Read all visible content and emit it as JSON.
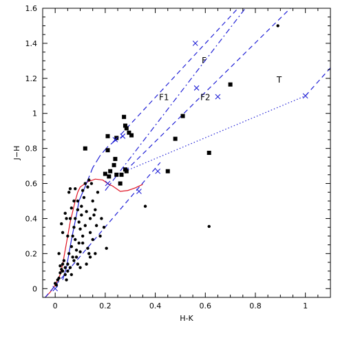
{
  "chart_data": {
    "type": "scatter",
    "title": "",
    "xlabel": "H-K",
    "ylabel": "J−H",
    "xlim": [
      -0.05,
      1.1
    ],
    "ylim": [
      -0.05,
      1.6
    ],
    "x_ticks": [
      0,
      0.2,
      0.4,
      0.6,
      0.8,
      1
    ],
    "x_tick_labels": [
      "0",
      "0.2",
      "0.4",
      "0.6",
      "0.8",
      "1"
    ],
    "y_ticks": [
      0,
      0.2,
      0.4,
      0.6,
      0.8,
      1,
      1.2,
      1.4,
      1.6
    ],
    "y_tick_labels": [
      "0",
      "0.2",
      "0.4",
      "0.6",
      "0.8",
      "1",
      "1.2",
      "1.4",
      "1.6"
    ],
    "grid": false,
    "colors": {
      "reddening": "#1f1fd6",
      "main_sequence": "#e01020",
      "points": "#000000"
    },
    "region_labels": [
      {
        "text": "F",
        "x": 0.595,
        "y": 1.285
      },
      {
        "text": "F1",
        "x": 0.435,
        "y": 1.075
      },
      {
        "text": "F2",
        "x": 0.6,
        "y": 1.075
      },
      {
        "text": "T",
        "x": 0.895,
        "y": 1.175
      }
    ],
    "series": [
      {
        "kind": "line",
        "style": "solid",
        "color": "#e01020",
        "points": [
          [
            -0.04,
            -0.05
          ],
          [
            -0.02,
            -0.02
          ],
          [
            0,
            0.02
          ],
          [
            0.02,
            0.08
          ],
          [
            0.03,
            0.14
          ],
          [
            0.04,
            0.22
          ],
          [
            0.05,
            0.3
          ],
          [
            0.06,
            0.38
          ],
          [
            0.07,
            0.44
          ],
          [
            0.08,
            0.5
          ],
          [
            0.09,
            0.55
          ],
          [
            0.1,
            0.58
          ],
          [
            0.13,
            0.61
          ],
          [
            0.16,
            0.625
          ],
          [
            0.19,
            0.62
          ],
          [
            0.21,
            0.6
          ],
          [
            0.23,
            0.585
          ],
          [
            0.26,
            0.555
          ],
          [
            0.29,
            0.56
          ],
          [
            0.32,
            0.575
          ],
          [
            0.35,
            0.595
          ]
        ]
      },
      {
        "kind": "line",
        "style": "solid",
        "color": "#1f1fd6",
        "points": [
          [
            0.03,
            0.05
          ],
          [
            0.045,
            0.12
          ],
          [
            0.055,
            0.2
          ],
          [
            0.065,
            0.28
          ],
          [
            0.075,
            0.35
          ],
          [
            0.085,
            0.42
          ],
          [
            0.095,
            0.5
          ],
          [
            0.11,
            0.55
          ],
          [
            0.125,
            0.6
          ]
        ]
      },
      {
        "kind": "line",
        "style": "longdash",
        "color": "#1f1fd6",
        "points": [
          [
            0.125,
            0.6
          ],
          [
            0.15,
            0.69
          ],
          [
            0.18,
            0.76
          ],
          [
            0.21,
            0.81
          ],
          [
            0.24,
            0.845
          ],
          [
            0.27,
            0.87
          ]
        ]
      },
      {
        "kind": "line",
        "style": "dash",
        "color": "#1f1fd6",
        "points": [
          [
            0.24,
            0.845
          ],
          [
            0.75,
            1.63
          ]
        ]
      },
      {
        "kind": "line",
        "style": "dashdot",
        "color": "#1f1fd6",
        "points": [
          [
            0.2,
            0.56
          ],
          [
            0.76,
            1.6
          ]
        ]
      },
      {
        "kind": "line",
        "style": "dash",
        "color": "#1f1fd6",
        "points": [
          [
            0.28,
            0.67
          ],
          [
            0.94,
            1.6
          ]
        ]
      },
      {
        "kind": "line",
        "style": "dash",
        "color": "#1f1fd6",
        "points": [
          [
            -0.04,
            -0.05
          ],
          [
            0.42,
            0.72
          ]
        ]
      },
      {
        "kind": "line",
        "style": "dash",
        "color": "#1f1fd6",
        "points": [
          [
            1.0,
            1.1
          ],
          [
            1.1,
            1.26
          ]
        ]
      },
      {
        "kind": "line",
        "style": "dot",
        "color": "#1f1fd6",
        "points": [
          [
            0.28,
            0.67
          ],
          [
            1.0,
            1.1
          ]
        ]
      }
    ],
    "cross_markers": [
      [
        0.0,
        0.0
      ],
      [
        0.24,
        0.85
      ],
      [
        0.335,
        0.555
      ],
      [
        0.41,
        0.67
      ],
      [
        0.56,
        1.4
      ],
      [
        0.565,
        1.145
      ],
      [
        0.65,
        1.095
      ],
      [
        1.0,
        1.1
      ],
      [
        0.21,
        0.6
      ],
      [
        0.27,
        0.87
      ]
    ],
    "square_points": [
      [
        0.12,
        0.8
      ],
      [
        0.21,
        0.87
      ],
      [
        0.21,
        0.79
      ],
      [
        0.245,
        0.86
      ],
      [
        0.275,
        0.98
      ],
      [
        0.28,
        0.93
      ],
      [
        0.285,
        0.915
      ],
      [
        0.295,
        0.89
      ],
      [
        0.305,
        0.875
      ],
      [
        0.2,
        0.655
      ],
      [
        0.215,
        0.64
      ],
      [
        0.22,
        0.67
      ],
      [
        0.235,
        0.705
      ],
      [
        0.24,
        0.74
      ],
      [
        0.245,
        0.65
      ],
      [
        0.265,
        0.65
      ],
      [
        0.28,
        0.68
      ],
      [
        0.285,
        0.67
      ],
      [
        0.26,
        0.6
      ],
      [
        0.45,
        0.67
      ],
      [
        0.48,
        0.855
      ],
      [
        0.51,
        0.985
      ],
      [
        0.615,
        0.775
      ],
      [
        0.7,
        1.165
      ]
    ],
    "dot_points": [
      [
        0.0,
        0.03
      ],
      [
        0.005,
        0.02
      ],
      [
        0.01,
        0.05
      ],
      [
        0.015,
        0.06
      ],
      [
        0.02,
        0.09
      ],
      [
        0.02,
        0.13
      ],
      [
        0.025,
        0.11
      ],
      [
        0.03,
        0.14
      ],
      [
        0.03,
        0.1
      ],
      [
        0.035,
        0.16
      ],
      [
        0.04,
        0.12
      ],
      [
        0.04,
        0.08
      ],
      [
        0.045,
        0.05
      ],
      [
        0.05,
        0.14
      ],
      [
        0.05,
        0.1
      ],
      [
        0.055,
        0.2
      ],
      [
        0.06,
        0.12
      ],
      [
        0.065,
        0.24
      ],
      [
        0.065,
        0.08
      ],
      [
        0.07,
        0.18
      ],
      [
        0.07,
        0.3
      ],
      [
        0.075,
        0.35
      ],
      [
        0.075,
        0.16
      ],
      [
        0.08,
        0.4
      ],
      [
        0.08,
        0.28
      ],
      [
        0.085,
        0.22
      ],
      [
        0.09,
        0.45
      ],
      [
        0.09,
        0.5
      ],
      [
        0.095,
        0.38
      ],
      [
        0.095,
        0.26
      ],
      [
        0.1,
        0.34
      ],
      [
        0.1,
        0.12
      ],
      [
        0.105,
        0.42
      ],
      [
        0.105,
        0.47
      ],
      [
        0.11,
        0.3
      ],
      [
        0.11,
        0.56
      ],
      [
        0.115,
        0.52
      ],
      [
        0.12,
        0.6
      ],
      [
        0.12,
        0.36
      ],
      [
        0.125,
        0.44
      ],
      [
        0.13,
        0.58
      ],
      [
        0.13,
        0.23
      ],
      [
        0.135,
        0.62
      ],
      [
        0.14,
        0.4
      ],
      [
        0.14,
        0.32
      ],
      [
        0.145,
        0.6
      ],
      [
        0.15,
        0.5
      ],
      [
        0.15,
        0.28
      ],
      [
        0.155,
        0.42
      ],
      [
        0.16,
        0.45
      ],
      [
        0.165,
        0.36
      ],
      [
        0.17,
        0.55
      ],
      [
        0.18,
        0.3
      ],
      [
        0.185,
        0.4
      ],
      [
        0.195,
        0.35
      ],
      [
        0.205,
        0.23
      ],
      [
        0.055,
        0.55
      ],
      [
        0.06,
        0.57
      ],
      [
        0.075,
        0.5
      ],
      [
        0.08,
        0.57
      ],
      [
        0.04,
        0.43
      ],
      [
        0.045,
        0.4
      ],
      [
        0.05,
        0.3
      ],
      [
        0.06,
        0.4
      ],
      [
        0.065,
        0.46
      ],
      [
        0.085,
        0.18
      ],
      [
        0.09,
        0.14
      ],
      [
        0.1,
        0.21
      ],
      [
        0.11,
        0.26
      ],
      [
        0.125,
        0.14
      ],
      [
        0.14,
        0.18
      ],
      [
        0.015,
        0.2
      ],
      [
        0.025,
        0.37
      ],
      [
        0.03,
        0.32
      ],
      [
        0.36,
        0.47
      ],
      [
        0.615,
        0.355
      ],
      [
        0.89,
        1.5
      ],
      [
        0.135,
        0.2
      ],
      [
        0.16,
        0.2
      ]
    ]
  }
}
